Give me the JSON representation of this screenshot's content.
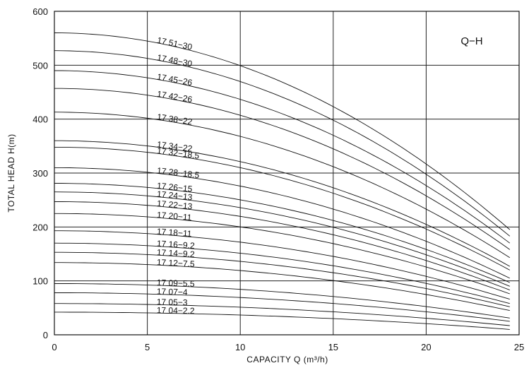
{
  "chart_data": {
    "type": "line",
    "title": "",
    "corner_label": "Q−H",
    "xlabel": "CAPACITY  Q (m³/h)",
    "ylabel": "TOTAL HEAD  H(m)",
    "xlim": [
      0,
      25
    ],
    "ylim": [
      0,
      600
    ],
    "xticks": [
      0,
      5,
      10,
      15,
      20,
      25
    ],
    "yticks": [
      0,
      100,
      200,
      300,
      400,
      500,
      600
    ],
    "grid": true,
    "series": [
      {
        "name": "17 51−30",
        "label_x": 5.5,
        "h0": 560,
        "h_end": 195
      },
      {
        "name": "17 48−30",
        "label_x": 5.5,
        "h0": 527,
        "h_end": 183
      },
      {
        "name": "17 45−26",
        "label_x": 5.5,
        "h0": 490,
        "h_end": 170
      },
      {
        "name": "17 42−26",
        "label_x": 5.5,
        "h0": 457,
        "h_end": 158
      },
      {
        "name": "17 38−22",
        "label_x": 5.5,
        "h0": 413,
        "h_end": 143
      },
      {
        "name": "17 34−22",
        "label_x": 5.5,
        "h0": 360,
        "h_end": 127
      },
      {
        "name": "17 32−18.5",
        "label_x": 5.5,
        "h0": 348,
        "h_end": 120
      },
      {
        "name": "17 28−18.5",
        "label_x": 5.5,
        "h0": 310,
        "h_end": 105
      },
      {
        "name": "17 26−15",
        "label_x": 5.5,
        "h0": 281,
        "h_end": 97
      },
      {
        "name": "17 24−13",
        "label_x": 5.5,
        "h0": 265,
        "h_end": 90
      },
      {
        "name": "17 22−13",
        "label_x": 5.5,
        "h0": 247,
        "h_end": 83
      },
      {
        "name": "17 20−11",
        "label_x": 5.5,
        "h0": 225,
        "h_end": 76
      },
      {
        "name": "17 18−11",
        "label_x": 5.5,
        "h0": 193,
        "h_end": 66
      },
      {
        "name": "17 16−9.2",
        "label_x": 5.5,
        "h0": 170,
        "h_end": 58
      },
      {
        "name": "17 14−9.2",
        "label_x": 5.5,
        "h0": 153,
        "h_end": 52
      },
      {
        "name": "17 12−7.5",
        "label_x": 5.5,
        "h0": 134,
        "h_end": 45
      },
      {
        "name": "17 09−5.5",
        "label_x": 5.5,
        "h0": 95,
        "h_end": 31
      },
      {
        "name": "17 07−4",
        "label_x": 5.5,
        "h0": 78,
        "h_end": 25
      },
      {
        "name": "17 05−3",
        "label_x": 5.5,
        "h0": 58,
        "h_end": 17
      },
      {
        "name": "17 04−2.2",
        "label_x": 5.5,
        "h0": 42,
        "h_end": 10
      }
    ]
  }
}
